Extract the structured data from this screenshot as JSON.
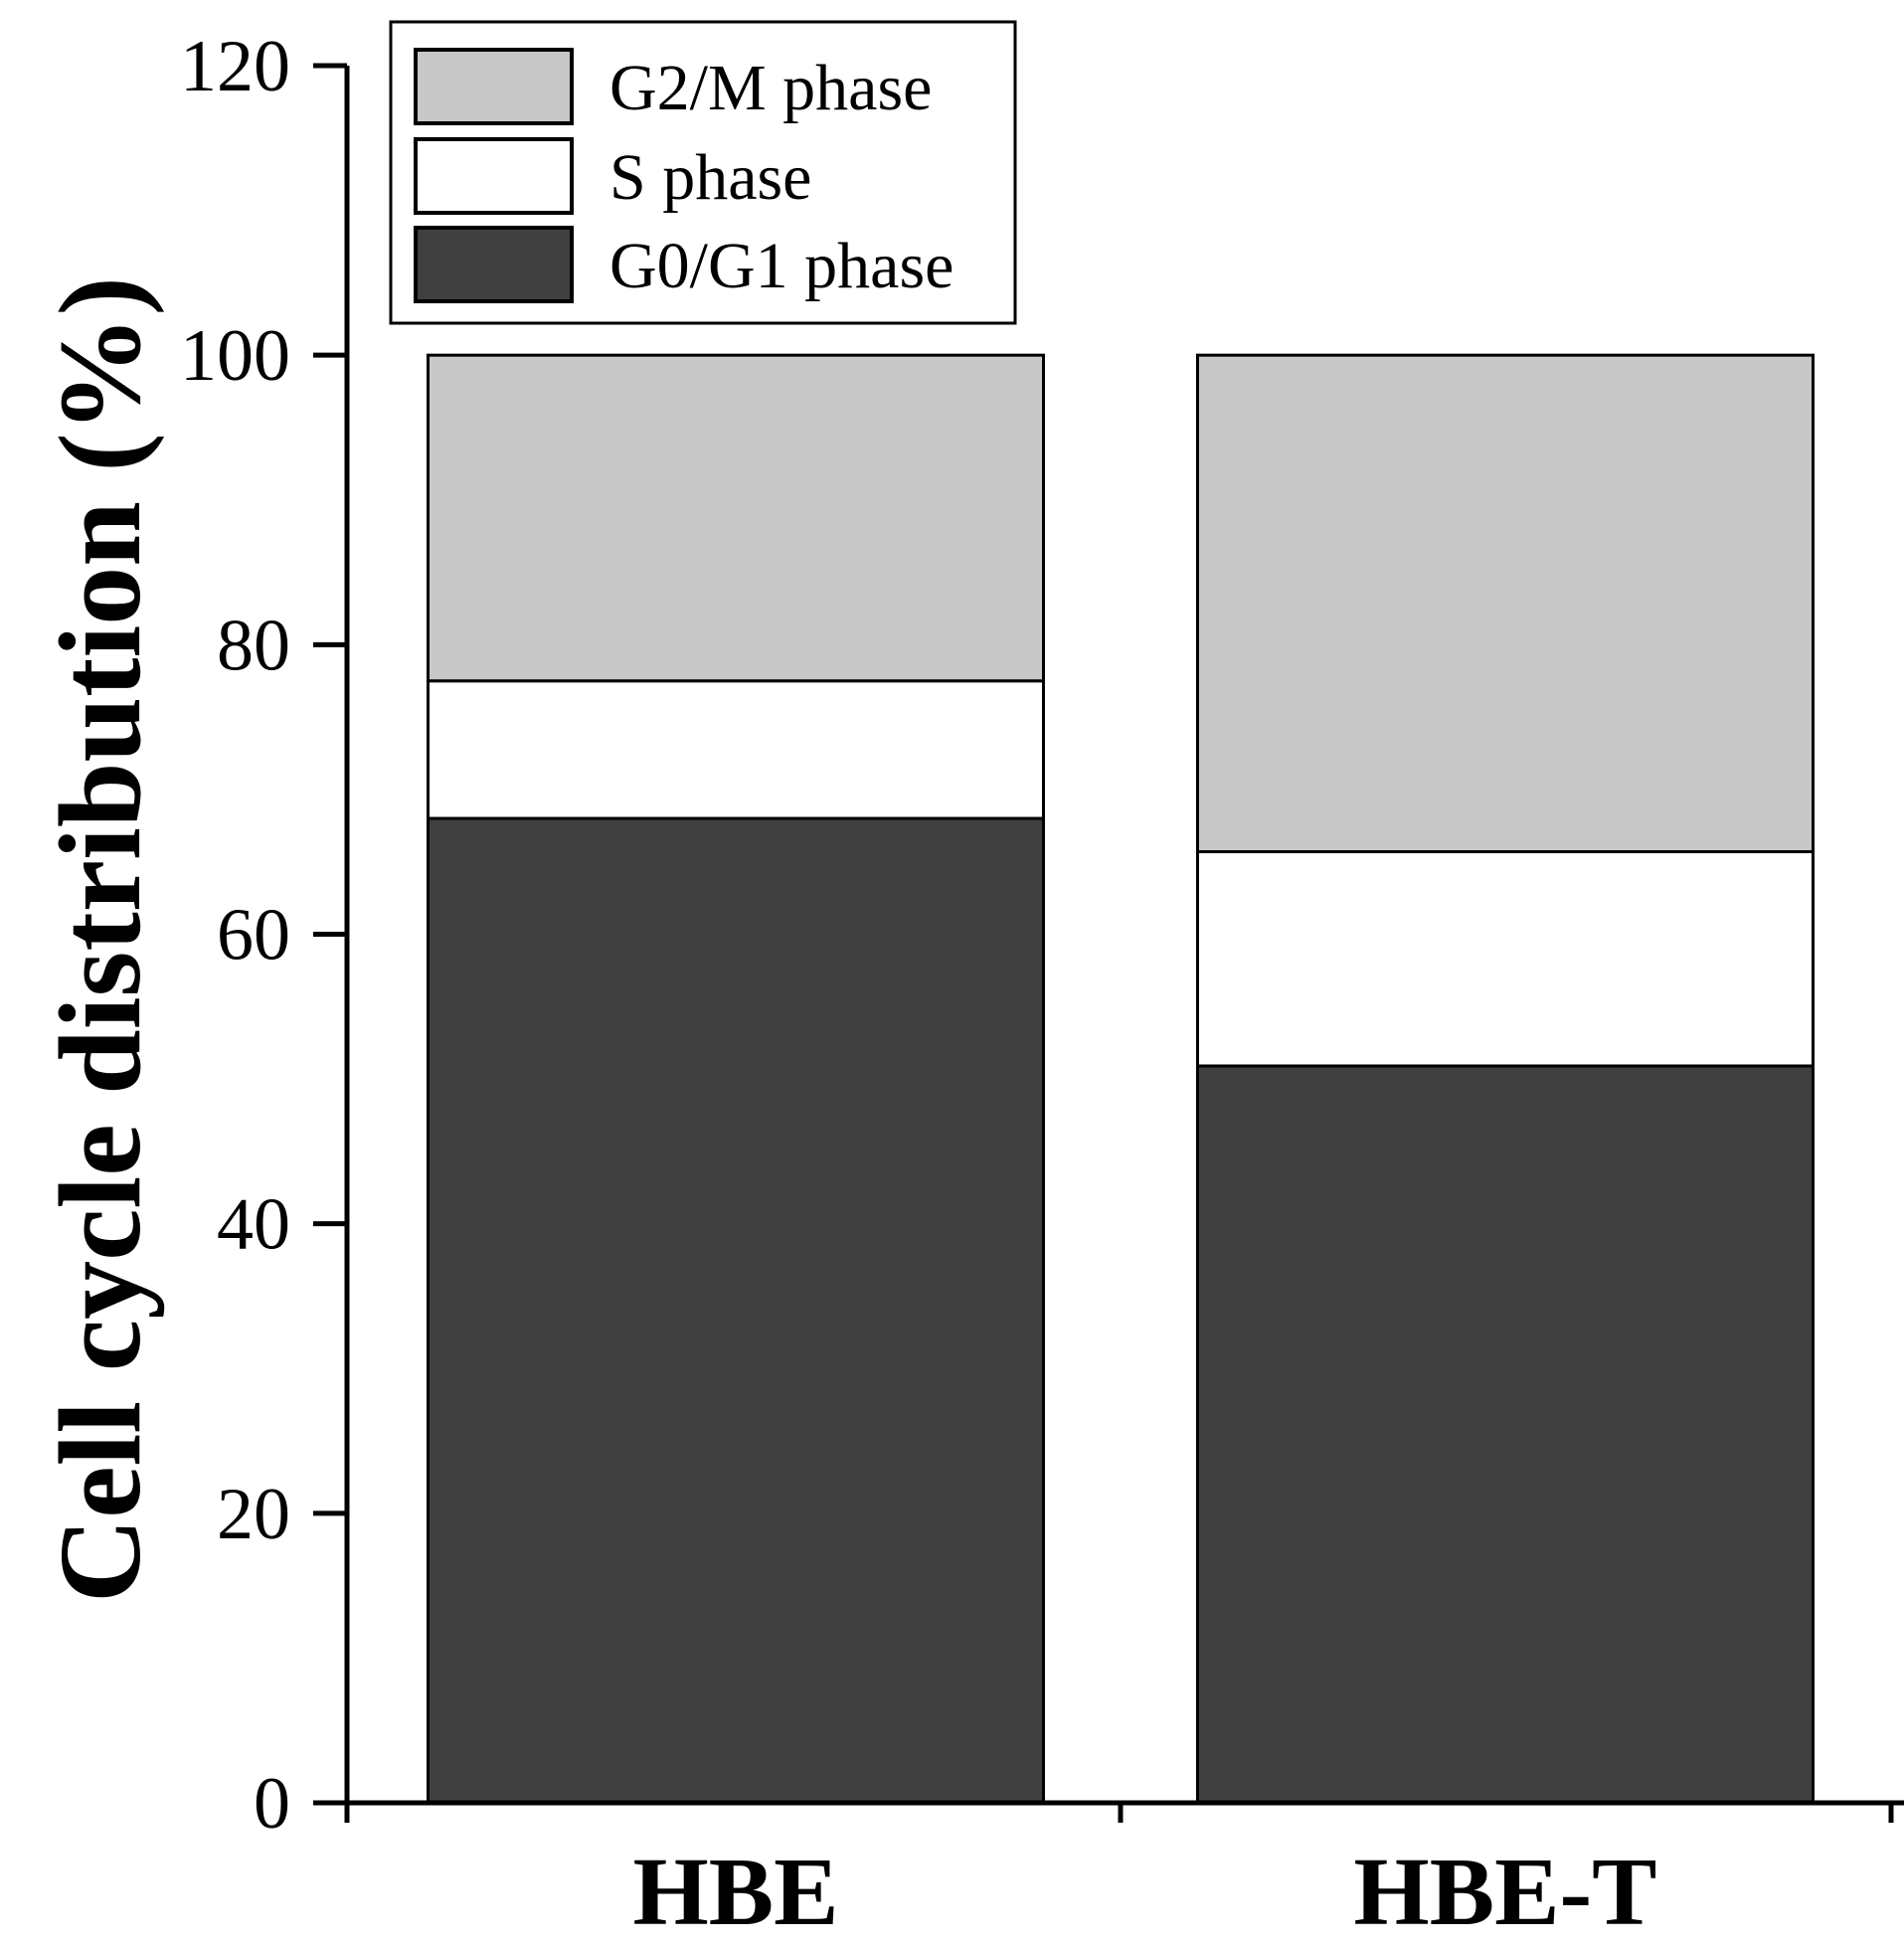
{
  "chart_data": {
    "type": "bar",
    "stacked": true,
    "ylabel": "Cell cycle distribution (%)",
    "xlabel": "",
    "ylim": [
      0,
      120
    ],
    "yticks": [
      0,
      20,
      40,
      60,
      80,
      100,
      120
    ],
    "categories": [
      "HBE",
      "HBE-T"
    ],
    "series": [
      {
        "name": "G0/G1 phase",
        "values": [
          68.0,
          50.9
        ],
        "color": "#404040"
      },
      {
        "name": "S phase",
        "values": [
          9.5,
          14.8
        ],
        "color": "#ffffff"
      },
      {
        "name": "G2/M phase",
        "values": [
          22.5,
          34.3
        ],
        "color": "#c8c8c8"
      }
    ],
    "legend": {
      "placement": "top-left",
      "order": [
        "G2/M phase",
        "S phase",
        "G0/G1 phase"
      ]
    },
    "grid": false
  }
}
